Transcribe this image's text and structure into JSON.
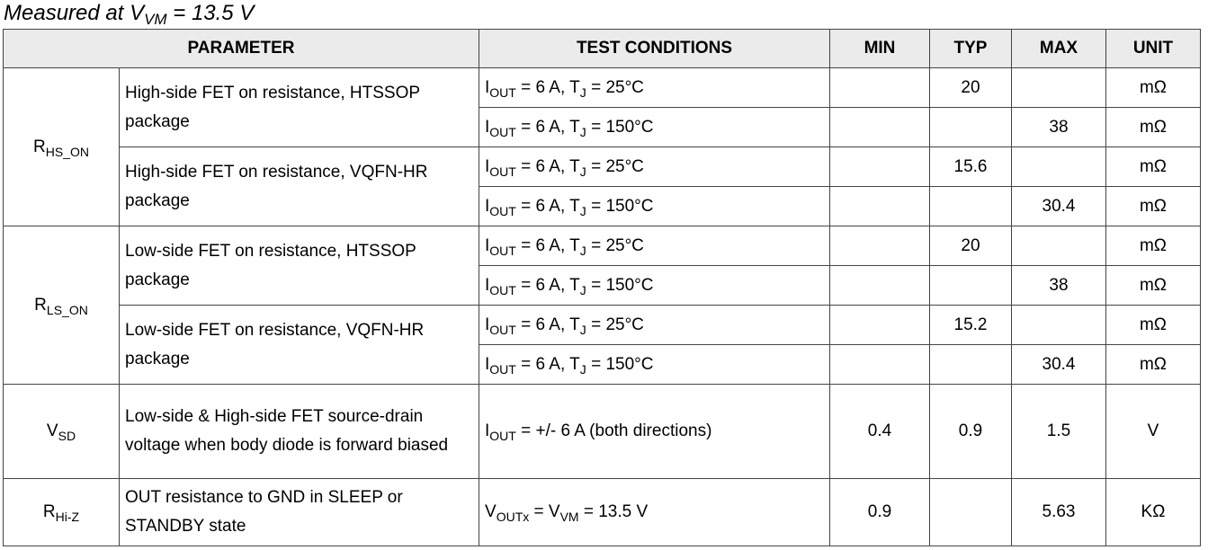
{
  "caption": {
    "prefix": "Measured at V",
    "sub": "VM",
    "suffix": " = 13.5 V"
  },
  "headers": [
    "PARAMETER",
    "TEST CONDITIONS",
    "MIN",
    "TYP",
    "MAX",
    "UNIT"
  ],
  "rows": [
    {
      "symbol": {
        "main": "R",
        "sub": "HS_ON"
      },
      "params": [
        {
          "label": "High-side FET on resistance, HTSSOP package",
          "conditions": [
            {
              "i": "I",
              "isub": "OUT",
              "mid": " = 6 A, T",
              "tsub": "J",
              "end": " = 25°C",
              "min": "",
              "typ": "20",
              "max": "",
              "unit": "mΩ"
            },
            {
              "i": "I",
              "isub": "OUT",
              "mid": " = 6 A, T",
              "tsub": "J",
              "end": " = 150°C",
              "min": "",
              "typ": "",
              "max": "38",
              "unit": "mΩ"
            }
          ]
        },
        {
          "label": "High-side FET on resistance, VQFN-HR package",
          "conditions": [
            {
              "i": "I",
              "isub": "OUT",
              "mid": " = 6 A, T",
              "tsub": "J",
              "end": " = 25°C",
              "min": "",
              "typ": "15.6",
              "max": "",
              "unit": "mΩ"
            },
            {
              "i": "I",
              "isub": "OUT",
              "mid": " = 6 A, T",
              "tsub": "J",
              "end": " = 150°C",
              "min": "",
              "typ": "",
              "max": "30.4",
              "unit": "mΩ"
            }
          ]
        }
      ]
    },
    {
      "symbol": {
        "main": "R",
        "sub": "LS_ON"
      },
      "params": [
        {
          "label": "Low-side FET on resistance, HTSSOP package",
          "conditions": [
            {
              "i": "I",
              "isub": "OUT",
              "mid": " = 6 A, T",
              "tsub": "J",
              "end": " = 25°C",
              "min": "",
              "typ": "20",
              "max": "",
              "unit": "mΩ"
            },
            {
              "i": "I",
              "isub": "OUT",
              "mid": " = 6 A, T",
              "tsub": "J",
              "end": " = 150°C",
              "min": "",
              "typ": "",
              "max": "38",
              "unit": "mΩ"
            }
          ]
        },
        {
          "label": "Low-side FET on resistance, VQFN-HR package",
          "conditions": [
            {
              "i": "I",
              "isub": "OUT",
              "mid": " = 6 A, T",
              "tsub": "J",
              "end": " = 25°C",
              "min": "",
              "typ": "15.2",
              "max": "",
              "unit": "mΩ"
            },
            {
              "i": "I",
              "isub": "OUT",
              "mid": " = 6 A, T",
              "tsub": "J",
              "end": " = 150°C",
              "min": "",
              "typ": "",
              "max": "30.4",
              "unit": "mΩ"
            }
          ]
        }
      ]
    }
  ],
  "vsd": {
    "symbol": {
      "main": "V",
      "sub": "SD"
    },
    "label": "Low-side & High-side FET source-drain voltage when body diode is forward biased",
    "cond": {
      "i": "I",
      "isub": "OUT",
      "rest": " = +/- 6 A (both directions)"
    },
    "min": "0.4",
    "typ": "0.9",
    "max": "1.5",
    "unit": "V"
  },
  "rhiz": {
    "symbol": {
      "main": "R",
      "sub": "Hi-Z"
    },
    "label": "OUT resistance to GND in SLEEP or STANDBY state",
    "cond": {
      "a": "V",
      "asub": "OUTx",
      "mid": " = V",
      "bsub": "VM",
      "rest": " = 13.5 V"
    },
    "min": "0.9",
    "typ": "",
    "max": "5.63",
    "unit": "KΩ"
  }
}
